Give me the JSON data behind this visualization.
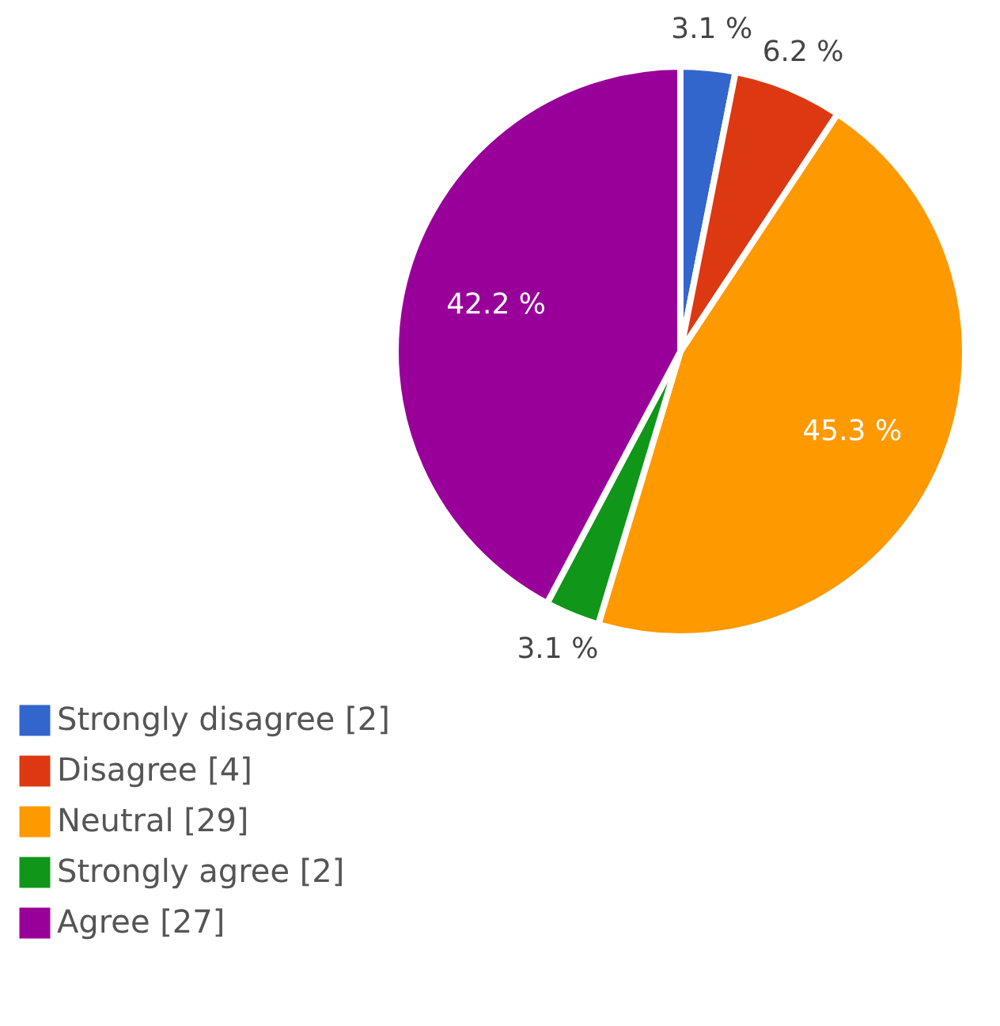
{
  "chart_data": {
    "type": "pie",
    "categories": [
      "Strongly disagree [2]",
      "Disagree [4]",
      "Neutral [29]",
      "Strongly agree [2]",
      "Agree [27]"
    ],
    "values": [
      3.1,
      6.2,
      45.3,
      3.1,
      42.2
    ],
    "value_labels": [
      "3.1 %",
      "6.2 %",
      "45.3 %",
      "3.1 %",
      "42.2 %"
    ],
    "colors": [
      "#3366cc",
      "#dc3912",
      "#ff9900",
      "#109618",
      "#990099"
    ],
    "legend": "bottom left"
  }
}
